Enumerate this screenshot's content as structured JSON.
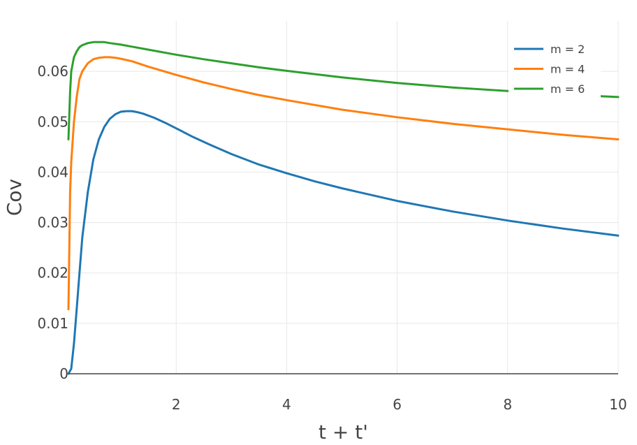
{
  "chart_data": {
    "type": "line",
    "xlabel": "t + t'",
    "ylabel": "Cov",
    "xlim": [
      0.05,
      10
    ],
    "ylim": [
      0,
      0.07
    ],
    "grid": true,
    "legend_position": "top-right",
    "x_ticks": [
      {
        "value": 2,
        "label": "2"
      },
      {
        "value": 4,
        "label": "4"
      },
      {
        "value": 6,
        "label": "6"
      },
      {
        "value": 8,
        "label": "8"
      },
      {
        "value": 10,
        "label": "10"
      }
    ],
    "y_ticks": [
      {
        "value": 0,
        "label": "0"
      },
      {
        "value": 0.01,
        "label": "0.01"
      },
      {
        "value": 0.02,
        "label": "0.02"
      },
      {
        "value": 0.03,
        "label": "0.03"
      },
      {
        "value": 0.04,
        "label": "0.04"
      },
      {
        "value": 0.05,
        "label": "0.05"
      },
      {
        "value": 0.06,
        "label": "0.06"
      }
    ],
    "series": [
      {
        "name": "m = 2",
        "color": "#1f77b4",
        "x": [
          0.05,
          0.1,
          0.15,
          0.2,
          0.25,
          0.3,
          0.4,
          0.5,
          0.6,
          0.7,
          0.8,
          0.9,
          1.0,
          1.1,
          1.2,
          1.3,
          1.4,
          1.6,
          1.8,
          2.0,
          2.3,
          2.6,
          3.0,
          3.5,
          4.0,
          4.5,
          5.0,
          6.0,
          7.0,
          8.0,
          9.0,
          10.0
        ],
        "y": [
          0.0,
          0.001,
          0.006,
          0.013,
          0.02,
          0.027,
          0.036,
          0.0425,
          0.0465,
          0.049,
          0.0506,
          0.0515,
          0.052,
          0.0521,
          0.0521,
          0.0519,
          0.0516,
          0.0508,
          0.0498,
          0.0487,
          0.047,
          0.0455,
          0.0436,
          0.0415,
          0.0398,
          0.0382,
          0.0368,
          0.0343,
          0.0322,
          0.0304,
          0.0288,
          0.0274
        ]
      },
      {
        "name": "m = 4",
        "color": "#ff7f0e",
        "x": [
          0.05,
          0.08,
          0.1,
          0.15,
          0.2,
          0.25,
          0.3,
          0.4,
          0.5,
          0.6,
          0.7,
          0.8,
          0.9,
          1.0,
          1.2,
          1.5,
          2.0,
          2.5,
          3.0,
          3.5,
          4.0,
          5.0,
          6.0,
          7.0,
          8.0,
          9.0,
          10.0
        ],
        "y": [
          0.0128,
          0.036,
          0.042,
          0.05,
          0.055,
          0.0585,
          0.06,
          0.0616,
          0.0624,
          0.0627,
          0.0628,
          0.0628,
          0.0627,
          0.0625,
          0.062,
          0.0609,
          0.0593,
          0.0578,
          0.0565,
          0.0553,
          0.0543,
          0.0524,
          0.0509,
          0.0496,
          0.0485,
          0.0474,
          0.0465
        ]
      },
      {
        "name": "m = 6",
        "color": "#2ca02c",
        "x": [
          0.05,
          0.08,
          0.1,
          0.15,
          0.2,
          0.25,
          0.3,
          0.4,
          0.5,
          0.6,
          0.7,
          0.8,
          1.0,
          1.2,
          1.5,
          2.0,
          2.5,
          3.0,
          3.5,
          4.0,
          5.0,
          6.0,
          7.0,
          8.0,
          9.0,
          10.0
        ],
        "y": [
          0.0465,
          0.056,
          0.06,
          0.0628,
          0.064,
          0.0648,
          0.0652,
          0.0656,
          0.0658,
          0.0658,
          0.0658,
          0.0656,
          0.0653,
          0.0649,
          0.0643,
          0.0633,
          0.0624,
          0.0616,
          0.0608,
          0.0601,
          0.0588,
          0.0577,
          0.0568,
          0.0561,
          0.0554,
          0.0549
        ]
      }
    ]
  }
}
